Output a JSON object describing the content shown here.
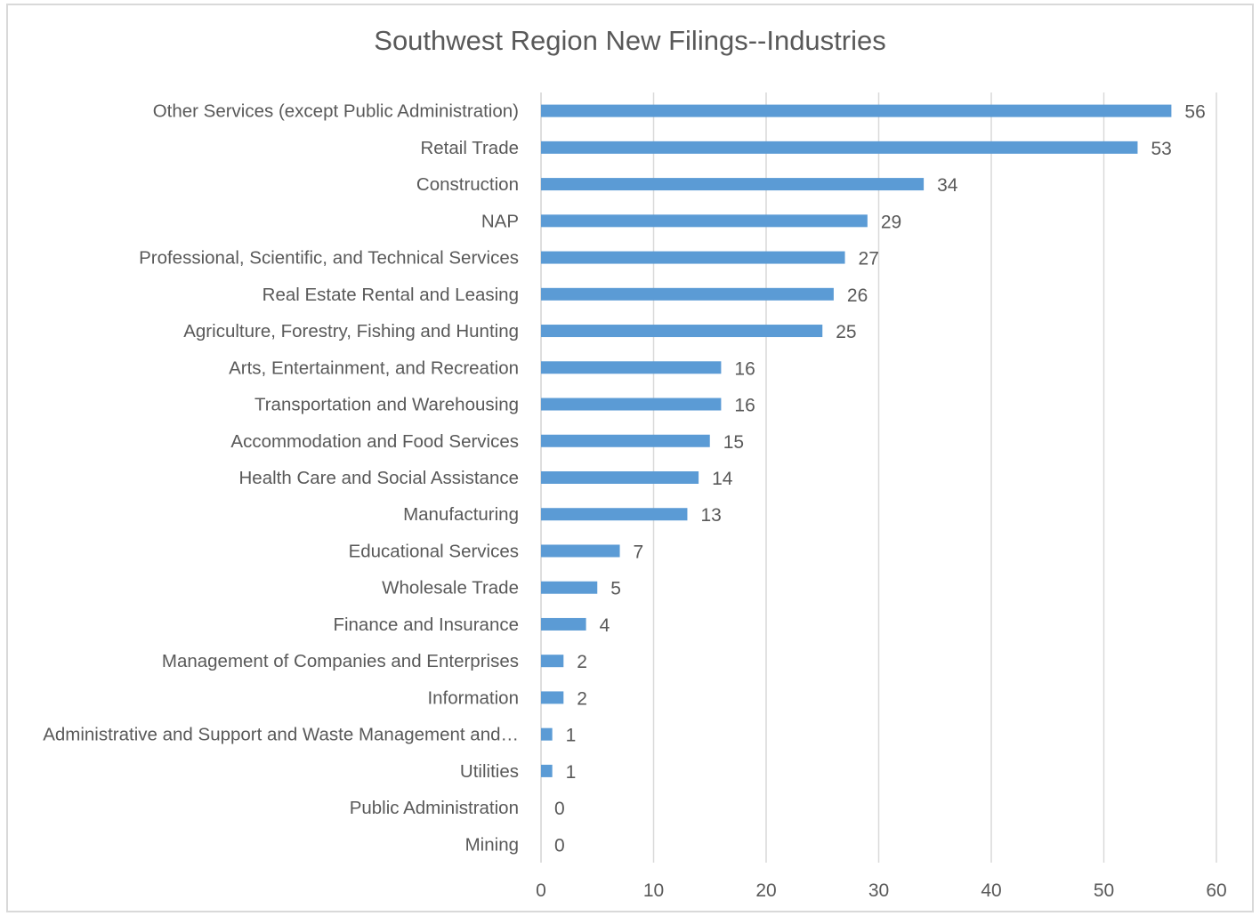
{
  "chart_data": {
    "type": "bar",
    "orientation": "horizontal",
    "title": "Southwest Region New Filings--Industries",
    "xlabel": "",
    "ylabel": "",
    "xlim": [
      0,
      60
    ],
    "x_ticks": [
      "0",
      "10",
      "20",
      "30",
      "40",
      "50",
      "60"
    ],
    "grid": true,
    "legend": "none",
    "bar_color": "#5b9bd5",
    "categories": [
      "Other Services (except Public Administration)",
      "Retail Trade",
      "Construction",
      "NAP",
      "Professional, Scientific, and Technical Services",
      "Real Estate Rental and Leasing",
      "Agriculture, Forestry, Fishing and Hunting",
      "Arts, Entertainment, and Recreation",
      "Transportation and Warehousing",
      "Accommodation and Food Services",
      "Health Care and Social Assistance",
      "Manufacturing",
      "Educational Services",
      "Wholesale Trade",
      "Finance and Insurance",
      "Management of Companies and Enterprises",
      "Information",
      "Administrative and Support and Waste Management and…",
      "Utilities",
      "Public Administration",
      "Mining"
    ],
    "values": [
      56,
      53,
      34,
      29,
      27,
      26,
      25,
      16,
      16,
      15,
      14,
      13,
      7,
      5,
      4,
      2,
      2,
      1,
      1,
      0,
      0
    ]
  }
}
